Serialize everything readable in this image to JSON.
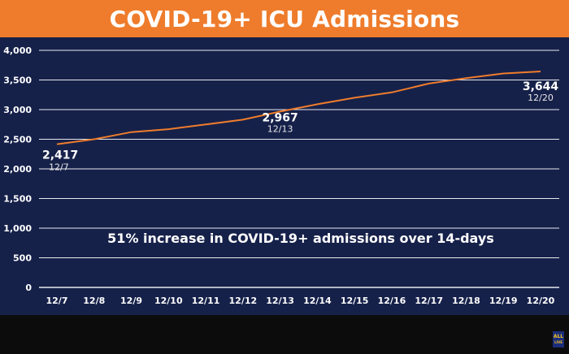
{
  "title": "COVID-19+ ICU Admissions",
  "chart_data": {
    "type": "line",
    "title": "COVID-19+ ICU Admissions",
    "categories": [
      "12/7",
      "12/8",
      "12/9",
      "12/10",
      "12/11",
      "12/12",
      "12/13",
      "12/14",
      "12/15",
      "12/16",
      "12/17",
      "12/18",
      "12/19",
      "12/20"
    ],
    "series": [
      {
        "values": [
          2417,
          2500,
          2620,
          2670,
          2750,
          2830,
          2967,
          3090,
          3200,
          3290,
          3440,
          3530,
          3610,
          3644
        ],
        "color": "#ee7c2c"
      }
    ],
    "ylim": [
      0,
      4000
    ],
    "yticks": [
      0,
      500,
      1000,
      1500,
      2000,
      2500,
      3000,
      3500,
      4000
    ],
    "ytick_labels": [
      "0",
      "500",
      "1,000",
      "1,500",
      "2,000",
      "2,500",
      "3,000",
      "3,500",
      "4,000"
    ],
    "grid": true,
    "annotations": [
      {
        "index": 0,
        "value_label": "2,417",
        "date_label": "12/7"
      },
      {
        "index": 6,
        "value_label": "2,967",
        "date_label": "12/13"
      },
      {
        "index": 13,
        "value_label": "3,644",
        "date_label": "12/20"
      }
    ],
    "note": "51% increase in COVID-19+ admissions over 14-days"
  },
  "colors": {
    "title_bar": "#ee7c2c",
    "background": "#16214a",
    "line": "#ee7c2c"
  },
  "logo": {
    "line1": "ALL",
    "line2": "LIVE"
  }
}
